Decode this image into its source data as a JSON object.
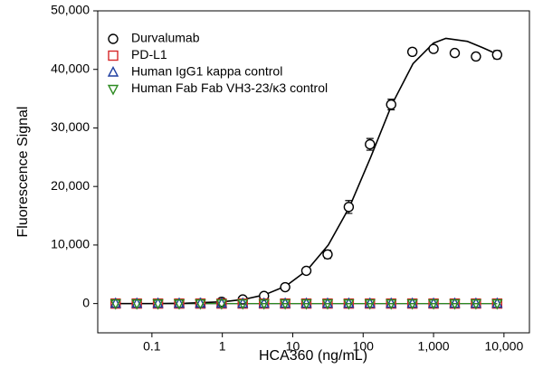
{
  "chart_data": {
    "type": "scatter",
    "x_label": "HCA360 (ng/mL)",
    "y_label": "Fluorescence Signal",
    "x_scale": "log",
    "legend": "upper left",
    "x": [
      0.0305,
      0.061,
      0.122,
      0.244,
      0.488,
      0.977,
      1.95,
      3.91,
      7.81,
      15.6,
      31.25,
      62.5,
      125,
      250,
      500,
      1000,
      2000,
      4000,
      8000
    ],
    "series": [
      {
        "name": "Durvalumab",
        "color": "#000000",
        "marker": "circle",
        "values": [
          0,
          0,
          0,
          0,
          50,
          300,
          700,
          1300,
          2800,
          5600,
          8400,
          16500,
          27200,
          34000,
          43000,
          43500,
          42800,
          42200,
          42500
        ],
        "errors": [
          100,
          100,
          100,
          100,
          100,
          200,
          200,
          300,
          400,
          500,
          700,
          1100,
          1000,
          900,
          600,
          500,
          400,
          600,
          700
        ]
      },
      {
        "name": "PD-L1",
        "color": "#d62728",
        "marker": "square",
        "values": [
          0,
          0,
          0,
          0,
          0,
          0,
          0,
          0,
          0,
          0,
          0,
          0,
          0,
          0,
          0,
          0,
          0,
          0,
          0
        ]
      },
      {
        "name": "Human IgG1 kappa control",
        "color": "#1f3fa0",
        "marker": "triangle",
        "values": [
          0,
          0,
          0,
          0,
          0,
          0,
          0,
          0,
          0,
          0,
          0,
          0,
          0,
          0,
          0,
          0,
          0,
          0,
          0
        ]
      },
      {
        "name": "Human Fab Fab VH3-23/κ3 control",
        "color": "#2e8b22",
        "marker": "triangle-down",
        "values": [
          0,
          0,
          0,
          0,
          0,
          0,
          0,
          0,
          0,
          0,
          0,
          0,
          0,
          0,
          0,
          0,
          0,
          0,
          0
        ]
      }
    ],
    "fit": {
      "color": "#000000",
      "x": [
        0.0305,
        0.1,
        0.3,
        1,
        2,
        4,
        8,
        16,
        32,
        64,
        128,
        256,
        512,
        1000,
        1500,
        3000,
        5000,
        8000
      ],
      "values": [
        0,
        0,
        50,
        300,
        700,
        1500,
        3000,
        5700,
        10000,
        16500,
        25000,
        34000,
        41000,
        44500,
        45300,
        44800,
        43700,
        42600
      ]
    },
    "xlim": [
      0.017,
      23000
    ],
    "ylim": [
      -5000,
      50000
    ],
    "xticks": [
      0.1,
      1,
      10,
      100,
      {
        "value": 1000,
        "label": "1,000"
      },
      {
        "value": 10000,
        "label": "10,000"
      }
    ],
    "yticks": [
      0,
      {
        "value": 10000,
        "label": "10,000"
      },
      {
        "value": 20000,
        "label": "20,000"
      },
      {
        "value": 30000,
        "label": "30,000"
      },
      {
        "value": 40000,
        "label": "40,000"
      },
      {
        "value": 50000,
        "label": "50,000"
      }
    ]
  }
}
